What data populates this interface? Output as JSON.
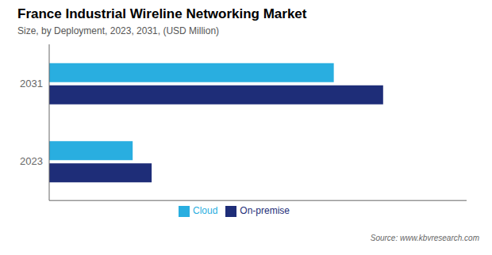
{
  "chart_data": {
    "type": "bar",
    "title": "France Industrial Wireline Networking Market",
    "subtitle": "Size, by Deployment,  2023, 2031, (USD Million)",
    "orientation": "horizontal",
    "categories": [
      "2023",
      "2031"
    ],
    "series": [
      {
        "name": "Cloud",
        "color": "#29aee0",
        "values": [
          22,
          75
        ]
      },
      {
        "name": "On-premise",
        "color": "#1e2d78",
        "values": [
          27,
          88
        ]
      }
    ],
    "xlim": [
      0,
      110
    ],
    "tick_labels": "y",
    "grid": false,
    "legend": "bottom",
    "annotations": [
      "Source: www.kbvresearch.com"
    ]
  }
}
